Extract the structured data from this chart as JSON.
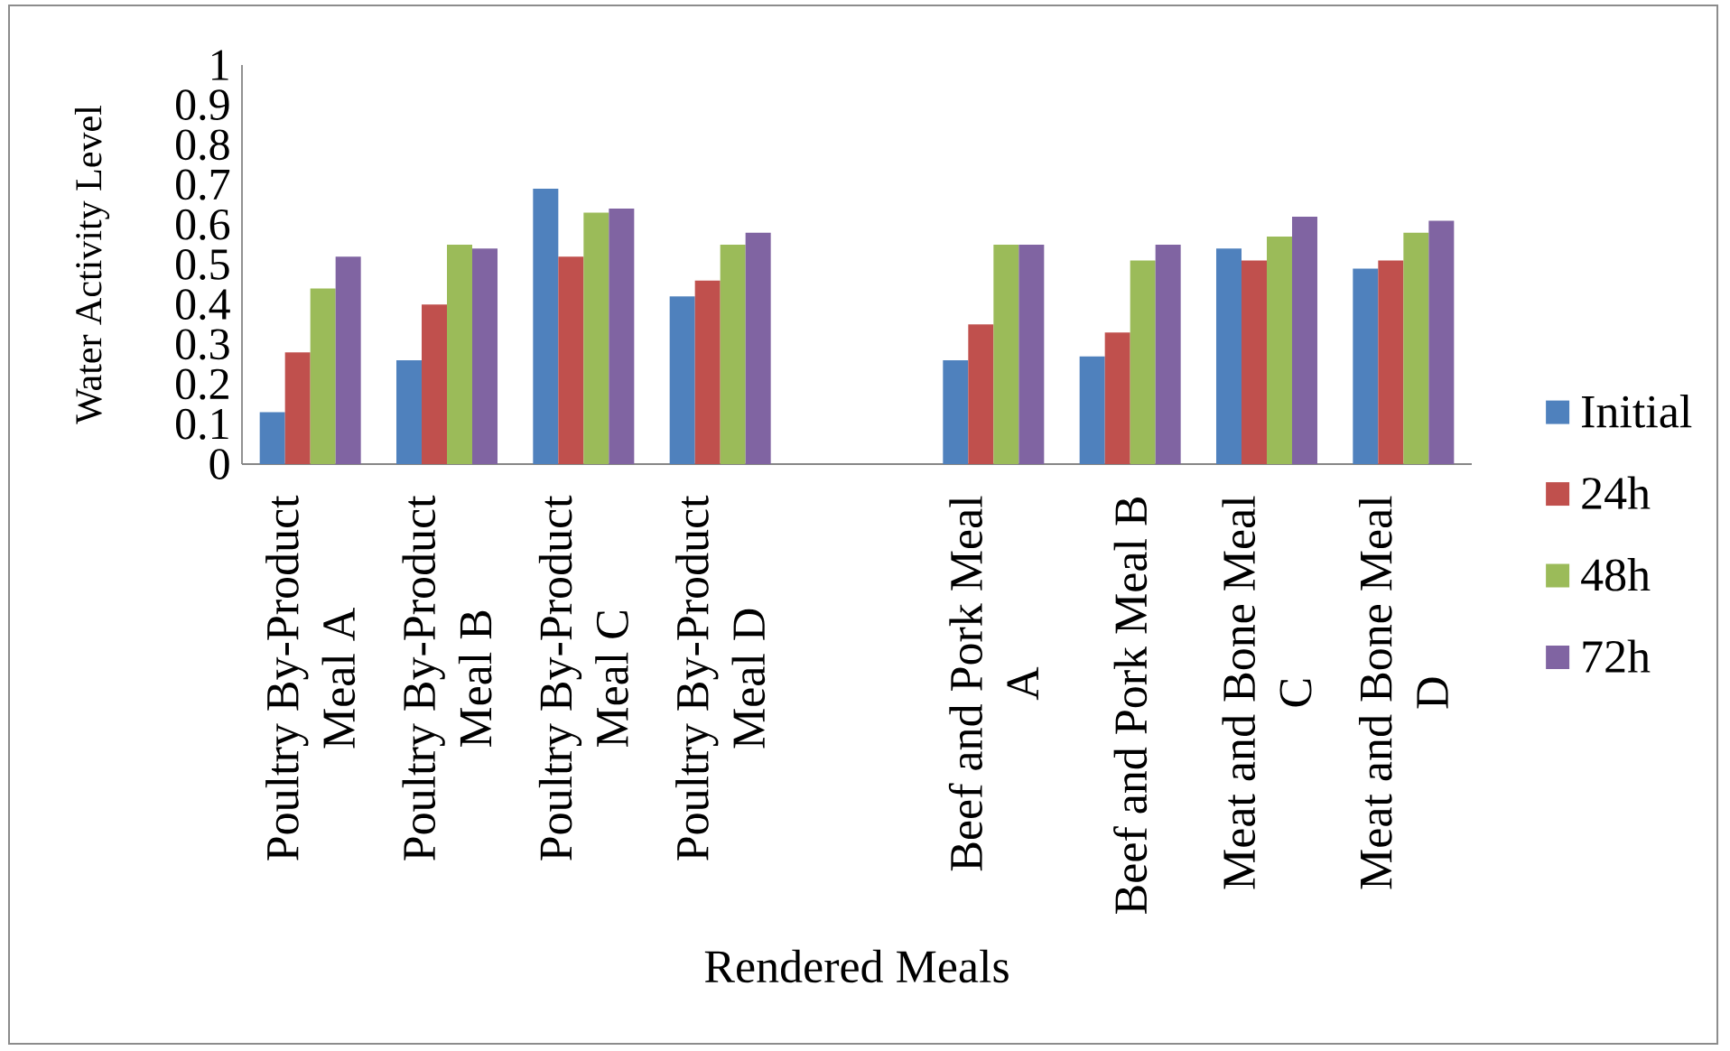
{
  "chart_data": {
    "type": "bar",
    "xlabel": "Rendered Meals",
    "ylabel": "Water Activity Level",
    "categories": [
      "Poultry By-Product Meal A",
      "Poultry By-Product Meal B",
      "Poultry By-Product Meal C",
      "Poultry By-Product Meal D",
      null,
      "Beef and Pork Meal A",
      "Beef and Pork Meal B",
      "Meat and Bone Meal C",
      "Meat and Bone Meal D"
    ],
    "series": [
      {
        "name": "Initial",
        "color": "#4f81bd",
        "values": [
          0.13,
          0.26,
          0.69,
          0.42,
          null,
          0.26,
          0.27,
          0.54,
          0.49
        ]
      },
      {
        "name": "24h",
        "color": "#c0504d",
        "values": [
          0.28,
          0.4,
          0.52,
          0.46,
          null,
          0.35,
          0.33,
          0.51,
          0.51
        ]
      },
      {
        "name": "48h",
        "color": "#9bbb59",
        "values": [
          0.44,
          0.55,
          0.63,
          0.55,
          null,
          0.55,
          0.51,
          0.57,
          0.58
        ]
      },
      {
        "name": "72h",
        "color": "#8064a2",
        "values": [
          0.52,
          0.54,
          0.64,
          0.58,
          null,
          0.55,
          0.55,
          0.62,
          0.61
        ]
      }
    ],
    "ylim": [
      0,
      1
    ],
    "yticks": [
      0,
      0.1,
      0.2,
      0.3,
      0.4,
      0.5,
      0.6,
      0.7,
      0.8,
      0.9,
      1
    ],
    "legend": "right"
  }
}
